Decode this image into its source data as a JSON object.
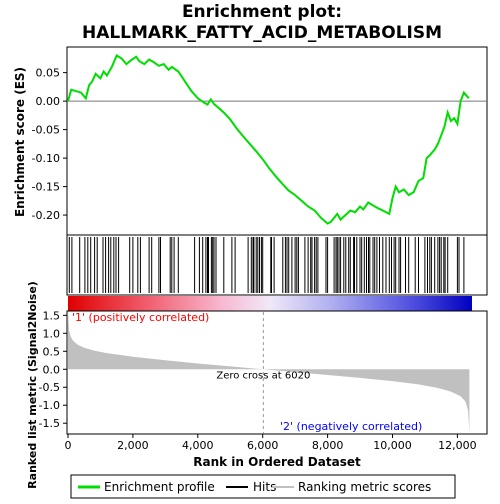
{
  "chart_data": {
    "type": "line",
    "title_line1": "Enrichment plot:",
    "title_line2": "HALLMARK_FATTY_ACID_METABOLISM",
    "es_panel": {
      "ylabel": "Enrichment score (ES)",
      "ylim": [
        -0.235,
        0.095
      ],
      "yticks": [
        "0.05",
        "0.00",
        "-0.05",
        "-0.10",
        "-0.15",
        "-0.20"
      ],
      "ytick_values": [
        0.05,
        0.0,
        -0.05,
        -0.1,
        -0.15,
        -0.2
      ],
      "series_name": "Enrichment profile",
      "x": [
        0,
        100,
        400,
        550,
        650,
        750,
        850,
        1000,
        1100,
        1200,
        1350,
        1500,
        1650,
        1800,
        1950,
        2100,
        2200,
        2350,
        2500,
        2650,
        2800,
        2950,
        3100,
        3200,
        3400,
        3600,
        3800,
        4000,
        4200,
        4300,
        4400,
        4500,
        4600,
        4800,
        5000,
        5200,
        5400,
        5600,
        5800,
        6000,
        6200,
        6400,
        6600,
        6800,
        7000,
        7200,
        7400,
        7600,
        7800,
        8000,
        8100,
        8300,
        8400,
        8550,
        8700,
        8850,
        9000,
        9100,
        9250,
        9400,
        9550,
        9700,
        9900,
        10000,
        10100,
        10200,
        10350,
        10500,
        10650,
        10800,
        10950,
        11050,
        11150,
        11300,
        11400,
        11500,
        11600,
        11700,
        11800,
        11900,
        12000,
        12100,
        12200,
        12350
      ],
      "y": [
        0.0,
        0.02,
        0.015,
        0.005,
        0.028,
        0.035,
        0.048,
        0.04,
        0.052,
        0.045,
        0.06,
        0.08,
        0.075,
        0.065,
        0.072,
        0.078,
        0.07,
        0.065,
        0.073,
        0.068,
        0.062,
        0.065,
        0.055,
        0.06,
        0.052,
        0.035,
        0.018,
        0.005,
        -0.003,
        -0.006,
        0.003,
        -0.005,
        -0.01,
        -0.02,
        -0.032,
        -0.048,
        -0.062,
        -0.075,
        -0.088,
        -0.102,
        -0.118,
        -0.132,
        -0.145,
        -0.157,
        -0.165,
        -0.175,
        -0.185,
        -0.192,
        -0.205,
        -0.215,
        -0.212,
        -0.198,
        -0.208,
        -0.2,
        -0.192,
        -0.195,
        -0.185,
        -0.19,
        -0.178,
        -0.183,
        -0.188,
        -0.192,
        -0.198,
        -0.17,
        -0.15,
        -0.16,
        -0.155,
        -0.165,
        -0.16,
        -0.14,
        -0.135,
        -0.1,
        -0.095,
        -0.085,
        -0.075,
        -0.06,
        -0.045,
        -0.02,
        -0.035,
        -0.03,
        -0.04,
        0.0,
        0.015,
        0.005
      ],
      "color": "#00dd00"
    },
    "hits": [
      40,
      120,
      360,
      520,
      610,
      700,
      820,
      900,
      1080,
      1160,
      1250,
      1320,
      1410,
      1480,
      1560,
      1900,
      2000,
      2150,
      2230,
      2500,
      2580,
      2800,
      2850,
      3150,
      3200,
      3270,
      3400,
      3900,
      4050,
      4150,
      4250,
      4300,
      4330,
      4420,
      4460,
      4500,
      4560,
      4800,
      5050,
      5150,
      5550,
      5650,
      5700,
      5730,
      5800,
      5850,
      5900,
      5960,
      6000,
      6250,
      6270,
      6350,
      6620,
      6700,
      6750,
      6800,
      6900,
      7000,
      7050,
      7100,
      7300,
      7400,
      7480,
      7520,
      7600,
      7650,
      7700,
      7950,
      8000,
      8200,
      8260,
      8300,
      8350,
      8400,
      8500,
      8560,
      8650,
      8700,
      8800,
      8830,
      8900,
      9000,
      9050,
      9130,
      9200,
      9260,
      9300,
      9400,
      9450,
      9520,
      9600,
      9700,
      9800,
      9900,
      9970,
      10050,
      10100,
      10200,
      10250,
      10400,
      10500,
      10700,
      10800,
      11000,
      11080,
      11150,
      11200,
      11300,
      11400,
      11450,
      11500,
      11580,
      11620,
      11700,
      12000,
      12050,
      12200
    ],
    "rank_panel": {
      "ylabel": "Ranked list metric (Signal2Noise)",
      "xlabel": "Rank in Ordered Dataset",
      "ylim": [
        -1.8,
        1.62
      ],
      "yticks": [
        "1.5",
        "1.0",
        "0.5",
        "0.0",
        "-0.5",
        "-1.0",
        "-1.5"
      ],
      "ytick_values": [
        1.5,
        1.0,
        0.5,
        0.0,
        -0.5,
        -1.0,
        -1.5
      ],
      "xlim": [
        0,
        12450
      ],
      "xticks": [
        "0",
        "2,000",
        "4,000",
        "6,000",
        "8,000",
        "10,000",
        "12,000"
      ],
      "xtick_values": [
        0,
        2000,
        4000,
        6000,
        8000,
        10000,
        12000
      ],
      "metric_x": [
        0,
        30,
        80,
        150,
        300,
        500,
        800,
        1200,
        2000,
        3000,
        4000,
        5000,
        6020,
        7000,
        8000,
        9000,
        10000,
        10800,
        11400,
        11800,
        12100,
        12250,
        12330,
        12370
      ],
      "metric_y": [
        1.62,
        1.1,
        0.92,
        0.8,
        0.68,
        0.6,
        0.52,
        0.45,
        0.35,
        0.25,
        0.16,
        0.08,
        0.0,
        -0.08,
        -0.16,
        -0.24,
        -0.33,
        -0.42,
        -0.52,
        -0.62,
        -0.75,
        -0.9,
        -1.15,
        -1.75
      ],
      "zero_cross_label": "Zero cross at 6020",
      "zero_cross_x": 6020,
      "positive_label": "'1' (positively correlated)",
      "negative_label": "'2' (negatively correlated)",
      "positive_color": "#ff0000",
      "negative_color": "#0000ff"
    },
    "legend": {
      "items": [
        {
          "label": "Enrichment profile",
          "color": "#00dd00"
        },
        {
          "label": "Hits",
          "color": "#000000"
        },
        {
          "label": "Ranking metric scores",
          "color": "#c0c0c0"
        }
      ]
    }
  }
}
